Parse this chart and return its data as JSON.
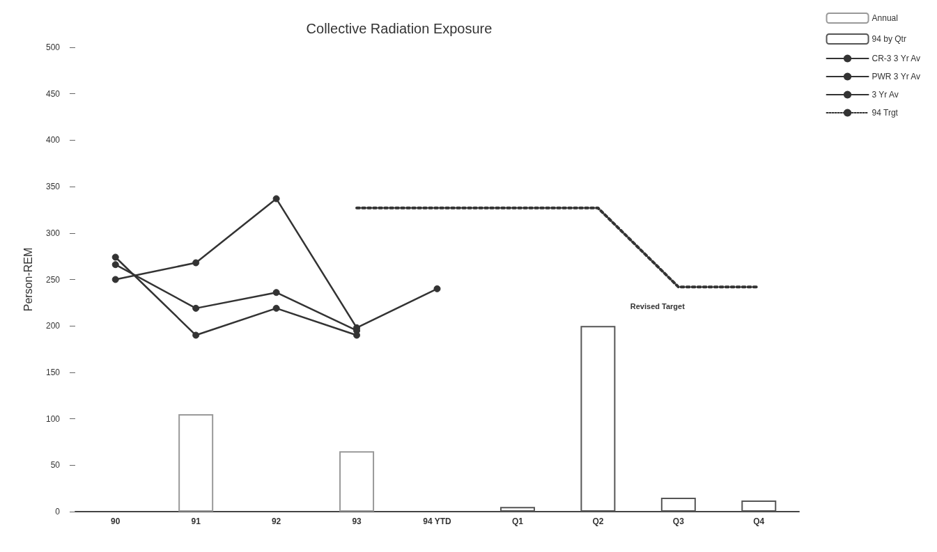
{
  "chart_data": {
    "type": "line",
    "title": "Collective Radiation Exposure",
    "ylabel": "Person-REM",
    "categories": [
      "90",
      "91",
      "92",
      "93",
      "94 YTD",
      "Q1",
      "Q2",
      "Q3",
      "Q4"
    ],
    "series": [
      {
        "name": "Annual",
        "type": "bar",
        "color": "#999999",
        "values": [
          null,
          105,
          null,
          65,
          null,
          null,
          null,
          null,
          null
        ]
      },
      {
        "name": "94 by Qtr",
        "type": "bar",
        "color": "#555555",
        "values": [
          null,
          null,
          null,
          null,
          null,
          5,
          200,
          15,
          12
        ]
      },
      {
        "name": "CR-3 3 Yr Av",
        "color": "#333333",
        "values": [
          250,
          268,
          337,
          198,
          240,
          null,
          null,
          null,
          null
        ]
      },
      {
        "name": "PWR 3 Yr Av",
        "color": "#333333",
        "values": [
          266,
          219,
          236,
          195,
          null,
          null,
          null,
          null,
          null
        ]
      },
      {
        "name": "3 Yr Av",
        "color": "#333333",
        "values": [
          274,
          190,
          219,
          190,
          null,
          null,
          null,
          null,
          null
        ]
      },
      {
        "name": "94 Trgt",
        "color": "#333333",
        "marker": "none",
        "line_style": "dotted",
        "values": [
          null,
          null,
          null,
          327,
          327,
          327,
          327,
          242,
          242
        ]
      }
    ],
    "ylim": [
      0,
      500
    ],
    "yticks": [
      0,
      50,
      100,
      150,
      200,
      250,
      300,
      350,
      400,
      450,
      500
    ],
    "grid": false,
    "legend": "top right",
    "marker": "circle",
    "line_style": "solid",
    "annotations": [
      {
        "text": "Revised Target",
        "x": "Q3",
        "y": 242
      }
    ]
  }
}
